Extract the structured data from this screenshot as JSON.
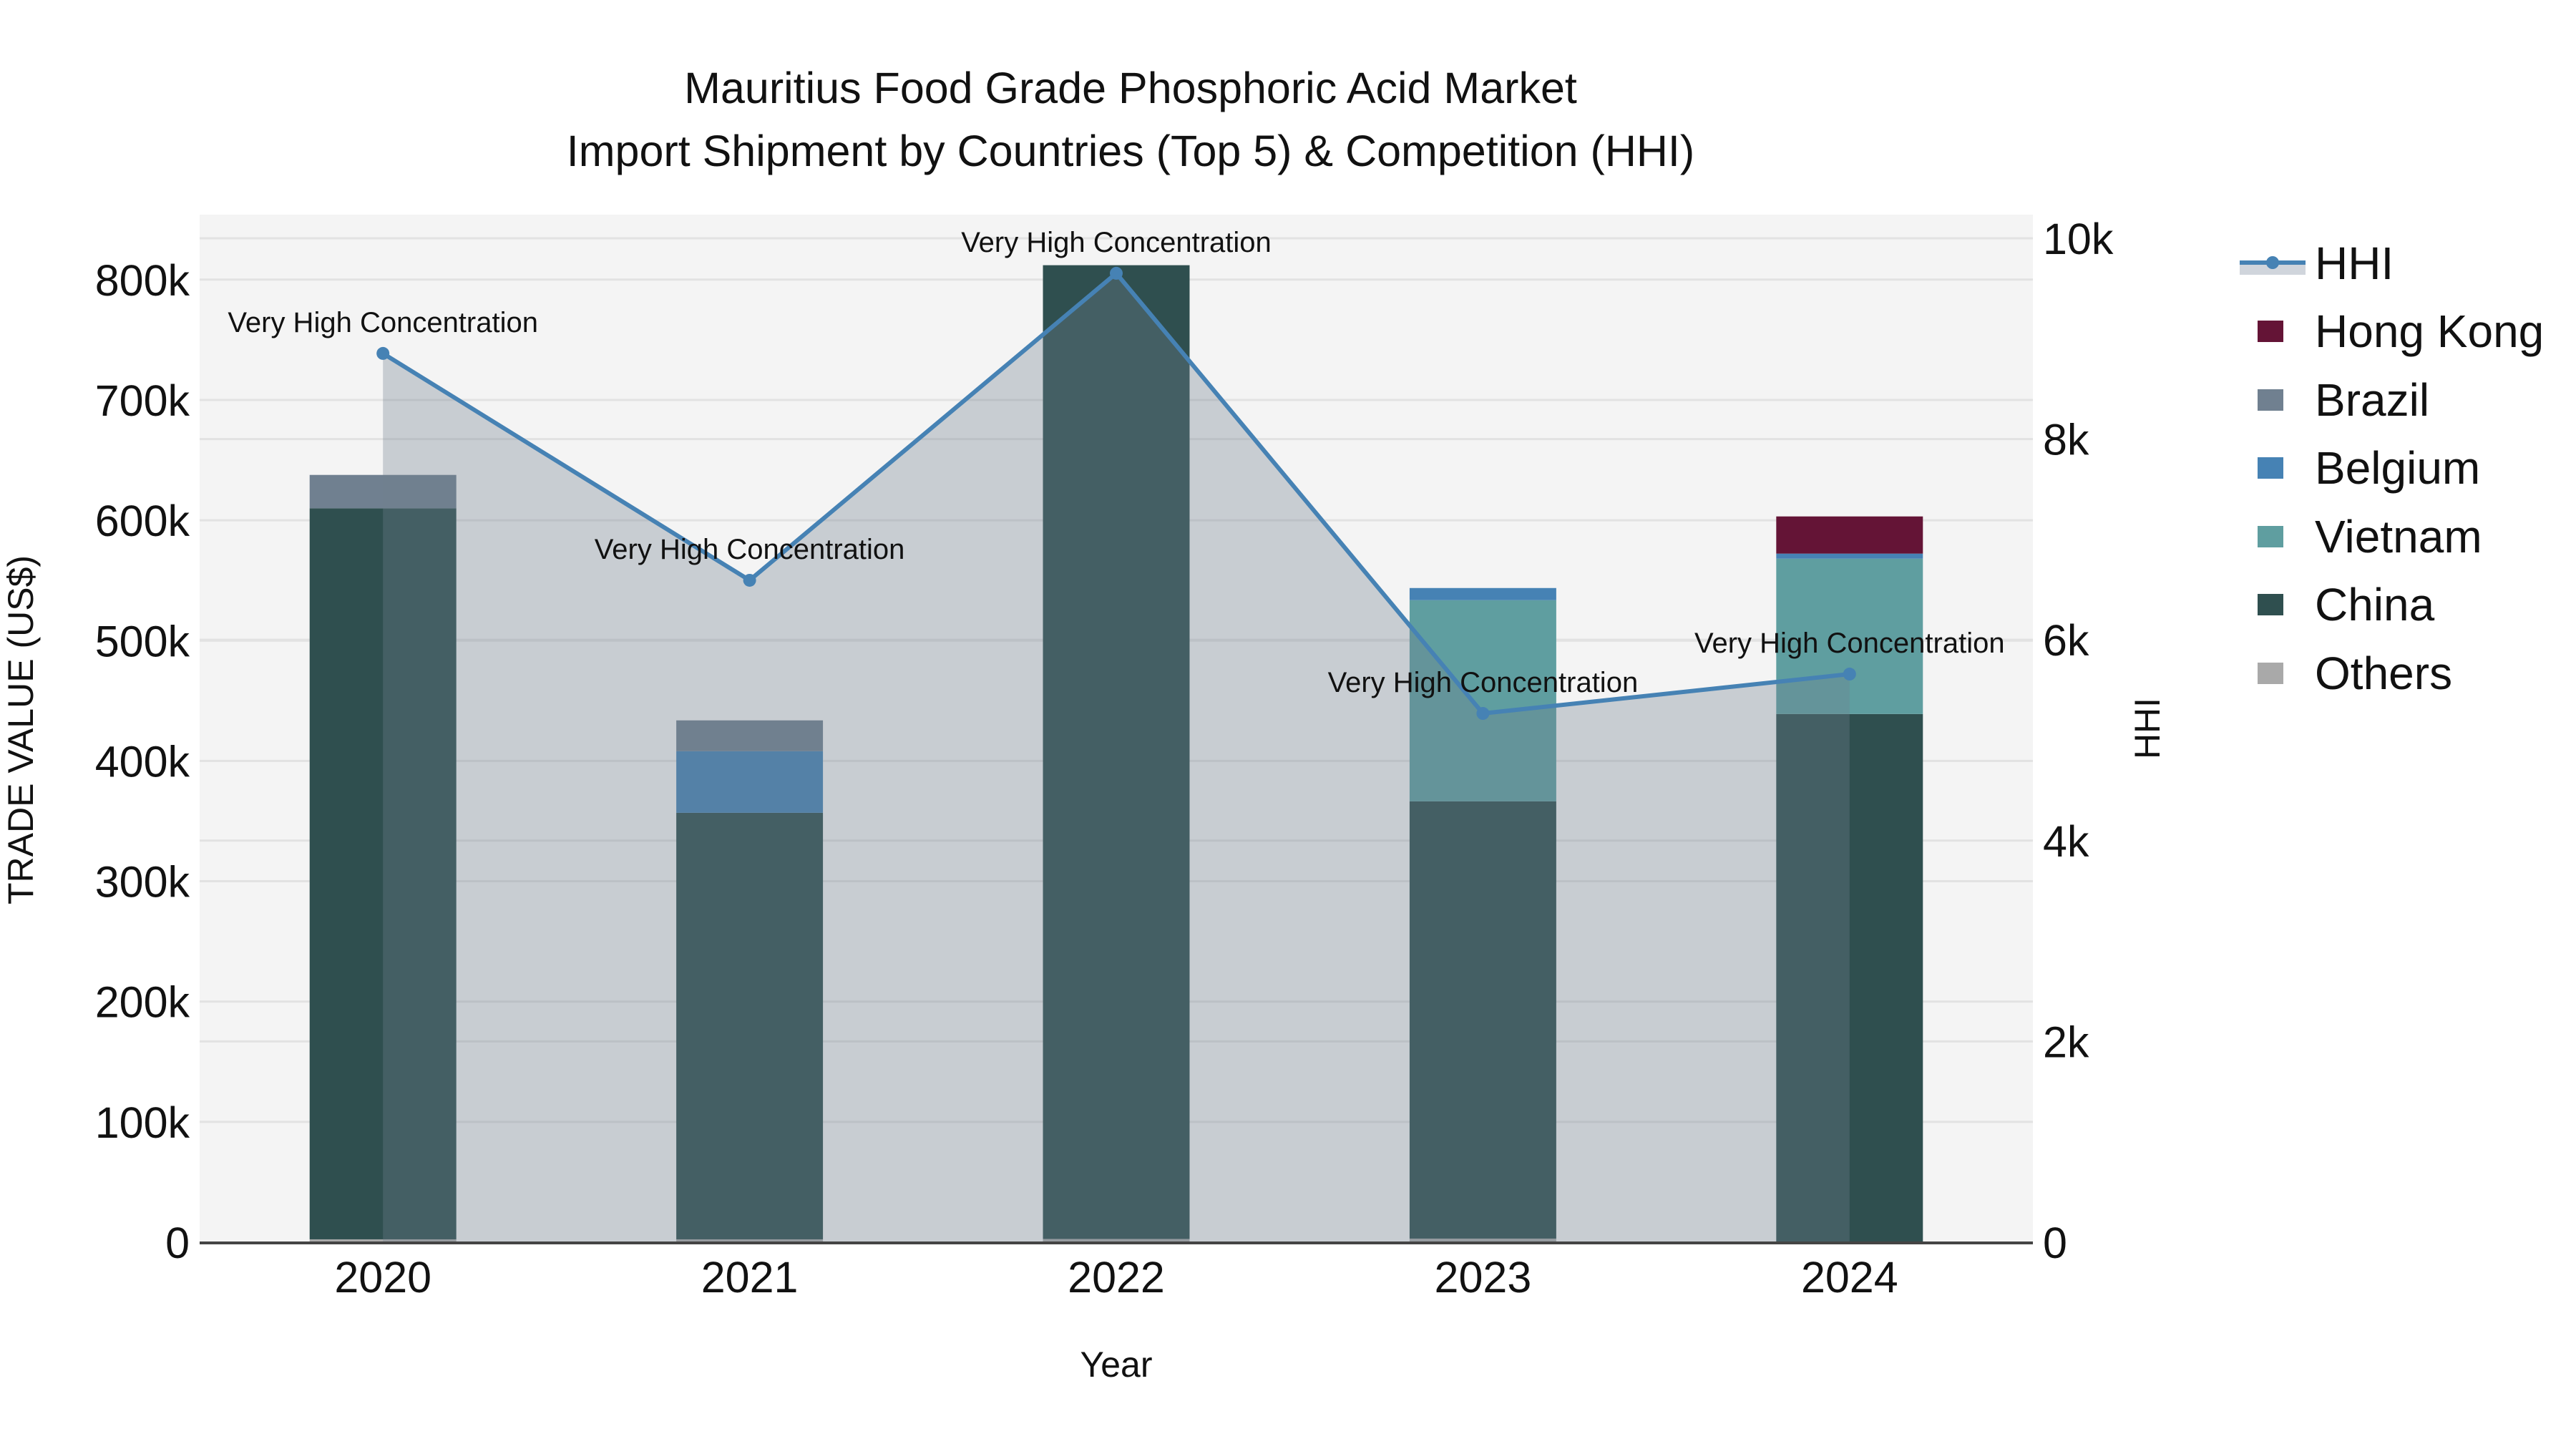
{
  "chart_data": {
    "type": "bar",
    "stacked": true,
    "title": "Mauritius Food Grade Phosphoric Acid Market",
    "subtitle": "Import Shipment by Countries (Top 5) & Competition (HHI)",
    "xlabel": "Year",
    "ylabel": "TRADE VALUE (US$)",
    "y2label": "HHI",
    "categories": [
      "2020",
      "2021",
      "2022",
      "2023",
      "2024"
    ],
    "ylim": [
      0,
      854000
    ],
    "y2lim": [
      0,
      10235
    ],
    "yticks": [
      0,
      100000,
      200000,
      300000,
      400000,
      500000,
      600000,
      700000,
      800000
    ],
    "ytick_labels": [
      "0",
      "100k",
      "200k",
      "300k",
      "400k",
      "500k",
      "600k",
      "700k",
      "800k"
    ],
    "y2ticks": [
      0,
      2000,
      4000,
      6000,
      8000,
      10000
    ],
    "y2tick_labels": [
      "0",
      "2k",
      "4k",
      "6k",
      "8k",
      "10k"
    ],
    "grid": true,
    "legend_position": "right",
    "series": [
      {
        "name": "Others",
        "color": "#A9A9A9",
        "values": [
          2400,
          2400,
          2700,
          3000,
          300
        ]
      },
      {
        "name": "China",
        "color": "#2F4F4F",
        "values": [
          607600,
          354500,
          809300,
          363400,
          438700
        ]
      },
      {
        "name": "Vietnam",
        "color": "#5F9EA0",
        "values": [
          0,
          0,
          0,
          167200,
          129100
        ]
      },
      {
        "name": "Belgium",
        "color": "#4682B4",
        "values": [
          0,
          51200,
          0,
          10100,
          4200
        ]
      },
      {
        "name": "Brazil",
        "color": "#708090",
        "values": [
          27700,
          25600,
          0,
          0,
          0
        ]
      },
      {
        "name": "Hong Kong",
        "color": "#641436",
        "values": [
          0,
          0,
          0,
          0,
          30900
        ]
      }
    ],
    "line_series": {
      "name": "HHI",
      "axis": "y2",
      "color": "#4682B4",
      "fill": "tozeroy",
      "fill_color": "rgba(112,128,144,0.33)",
      "values": [
        8853,
        6593,
        9651,
        5267,
        5659
      ]
    },
    "annotations": [
      {
        "x": "2020",
        "text": "Very High Concentration"
      },
      {
        "x": "2021",
        "text": "Very High Concentration"
      },
      {
        "x": "2022",
        "text": "Very High Concentration"
      },
      {
        "x": "2023",
        "text": "Very High Concentration"
      },
      {
        "x": "2024",
        "text": "Very High Concentration"
      }
    ]
  },
  "legend": {
    "items": [
      {
        "label": "HHI",
        "type": "line",
        "color": "#4682B4"
      },
      {
        "label": "Hong Kong",
        "type": "box",
        "color": "#641436"
      },
      {
        "label": "Brazil",
        "type": "box",
        "color": "#708090"
      },
      {
        "label": "Belgium",
        "type": "box",
        "color": "#4682B4"
      },
      {
        "label": "Vietnam",
        "type": "box",
        "color": "#5F9EA0"
      },
      {
        "label": "China",
        "type": "box",
        "color": "#2F4F4F"
      },
      {
        "label": "Others",
        "type": "box",
        "color": "#A9A9A9"
      }
    ]
  },
  "colors": {
    "plot_background": "#F4F4F4",
    "grid": "#E2E2E2",
    "axis_line": "#444444",
    "hhi_line": "#4682B4"
  }
}
